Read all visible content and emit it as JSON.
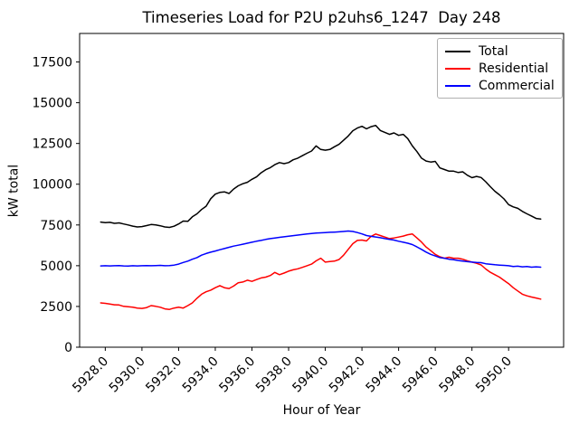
{
  "chart_data": {
    "type": "line",
    "title": "Timeseries Load for P2U p2uhs6_1247  Day 248",
    "xlabel": "Hour of Year",
    "ylabel": "kW total",
    "grid": false,
    "legend_position": "upper right",
    "xlim": [
      5926.6,
      5953.0
    ],
    "ylim": [
      0,
      19250
    ],
    "x_tick_values": [
      5928,
      5930,
      5932,
      5934,
      5936,
      5938,
      5940,
      5942,
      5944,
      5946,
      5948,
      5950
    ],
    "x_tick_labels": [
      "5928.0",
      "5930.0",
      "5932.0",
      "5934.0",
      "5936.0",
      "5938.0",
      "5940.0",
      "5942.0",
      "5944.0",
      "5946.0",
      "5948.0",
      "5950.0"
    ],
    "y_tick_values": [
      0,
      2500,
      5000,
      7500,
      10000,
      12500,
      15000,
      17500
    ],
    "y_tick_labels": [
      "0",
      "2500",
      "5000",
      "7500",
      "10000",
      "12500",
      "15000",
      "17500"
    ],
    "x": [
      5927.75,
      5928.0,
      5928.25,
      5928.5,
      5928.75,
      5929.0,
      5929.25,
      5929.5,
      5929.75,
      5930.0,
      5930.25,
      5930.5,
      5930.75,
      5931.0,
      5931.25,
      5931.5,
      5931.75,
      5932.0,
      5932.25,
      5932.5,
      5932.75,
      5933.0,
      5933.25,
      5933.5,
      5933.75,
      5934.0,
      5934.25,
      5934.5,
      5934.75,
      5935.0,
      5935.25,
      5935.5,
      5935.75,
      5936.0,
      5936.25,
      5936.5,
      5936.75,
      5937.0,
      5937.25,
      5937.5,
      5937.75,
      5938.0,
      5938.25,
      5938.5,
      5938.75,
      5939.0,
      5939.25,
      5939.5,
      5939.75,
      5940.0,
      5940.25,
      5940.5,
      5940.75,
      5941.0,
      5941.25,
      5941.5,
      5941.75,
      5942.0,
      5942.25,
      5942.5,
      5942.75,
      5943.0,
      5943.25,
      5943.5,
      5943.75,
      5944.0,
      5944.25,
      5944.5,
      5944.75,
      5945.0,
      5945.25,
      5945.5,
      5945.75,
      5946.0,
      5946.25,
      5946.5,
      5946.75,
      5947.0,
      5947.25,
      5947.5,
      5947.75,
      5948.0,
      5948.25,
      5948.5,
      5948.75,
      5949.0,
      5949.25,
      5949.5,
      5949.75,
      5950.0,
      5950.25,
      5950.5,
      5950.75,
      5951.0,
      5951.25,
      5951.5,
      5951.75
    ],
    "series": [
      {
        "name": "Total",
        "color": "#000000",
        "values": [
          7680,
          7640,
          7660,
          7600,
          7630,
          7560,
          7500,
          7430,
          7380,
          7400,
          7460,
          7530,
          7500,
          7450,
          7380,
          7350,
          7420,
          7560,
          7740,
          7720,
          8000,
          8180,
          8450,
          8650,
          9110,
          9390,
          9500,
          9530,
          9430,
          9700,
          9900,
          10030,
          10120,
          10300,
          10450,
          10700,
          10890,
          11020,
          11200,
          11330,
          11260,
          11330,
          11500,
          11600,
          11750,
          11900,
          12040,
          12350,
          12130,
          12090,
          12130,
          12300,
          12450,
          12700,
          12960,
          13280,
          13450,
          13550,
          13400,
          13530,
          13610,
          13300,
          13180,
          13060,
          13150,
          13000,
          13060,
          12800,
          12350,
          12000,
          11600,
          11420,
          11360,
          11400,
          11000,
          10900,
          10800,
          10800,
          10720,
          10760,
          10550,
          10400,
          10480,
          10410,
          10150,
          9850,
          9570,
          9350,
          9100,
          8750,
          8610,
          8520,
          8330,
          8180,
          8050,
          7900,
          7860
        ]
      },
      {
        "name": "Residential",
        "color": "#ff0000",
        "values": [
          2720,
          2690,
          2650,
          2600,
          2590,
          2510,
          2480,
          2450,
          2400,
          2380,
          2430,
          2550,
          2510,
          2450,
          2350,
          2320,
          2400,
          2450,
          2400,
          2550,
          2720,
          3000,
          3250,
          3400,
          3500,
          3650,
          3780,
          3650,
          3600,
          3750,
          3950,
          4000,
          4110,
          4040,
          4150,
          4250,
          4300,
          4400,
          4590,
          4450,
          4550,
          4665,
          4750,
          4810,
          4900,
          5000,
          5100,
          5300,
          5460,
          5220,
          5260,
          5280,
          5380,
          5650,
          6000,
          6350,
          6550,
          6575,
          6520,
          6800,
          6945,
          6850,
          6755,
          6665,
          6700,
          6755,
          6820,
          6900,
          6945,
          6700,
          6450,
          6145,
          5925,
          5700,
          5550,
          5460,
          5520,
          5460,
          5460,
          5400,
          5300,
          5220,
          5150,
          5050,
          4800,
          4600,
          4450,
          4300,
          4100,
          3900,
          3650,
          3450,
          3250,
          3150,
          3080,
          3020,
          2950
        ]
      },
      {
        "name": "Commercial",
        "color": "#0000ff",
        "values": [
          4990,
          5000,
          4990,
          5000,
          5010,
          4990,
          4980,
          5000,
          4990,
          5000,
          5010,
          5000,
          5010,
          5020,
          5000,
          5010,
          5035,
          5100,
          5200,
          5280,
          5400,
          5500,
          5645,
          5750,
          5830,
          5900,
          5980,
          6050,
          6130,
          6200,
          6255,
          6320,
          6380,
          6440,
          6500,
          6550,
          6610,
          6665,
          6700,
          6740,
          6775,
          6810,
          6845,
          6880,
          6915,
          6945,
          6975,
          7000,
          7020,
          7035,
          7050,
          7060,
          7080,
          7100,
          7130,
          7100,
          7035,
          6950,
          6850,
          6800,
          6760,
          6720,
          6665,
          6620,
          6575,
          6500,
          6440,
          6380,
          6295,
          6150,
          6000,
          5835,
          5700,
          5600,
          5500,
          5460,
          5400,
          5370,
          5320,
          5280,
          5250,
          5220,
          5200,
          5185,
          5120,
          5090,
          5060,
          5035,
          5020,
          5000,
          4950,
          4970,
          4930,
          4950,
          4910,
          4930,
          4910
        ]
      }
    ]
  }
}
